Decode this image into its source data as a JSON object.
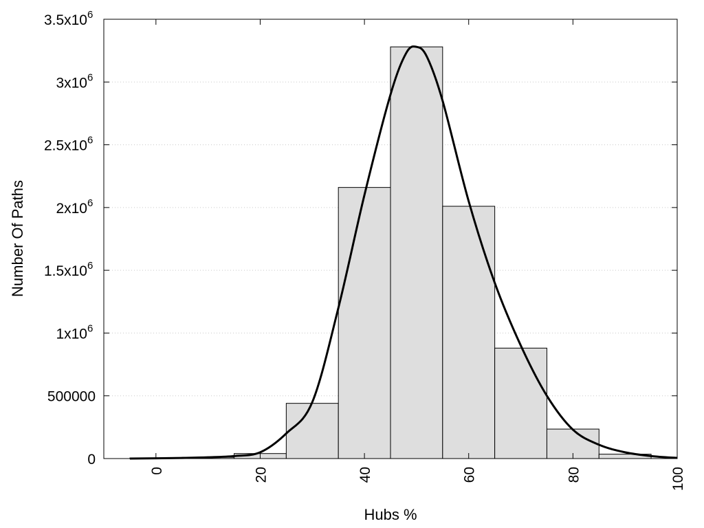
{
  "chart_data": {
    "type": "bar",
    "title": "",
    "xlabel": "Hubs %",
    "ylabel": "Number Of Paths",
    "xlim": [
      -10,
      100
    ],
    "ylim": [
      0,
      3500000
    ],
    "grid": "horizontal-dotted",
    "bin_width": 10,
    "bins": [
      {
        "center": 0,
        "value": 5000
      },
      {
        "center": 10,
        "value": 10000
      },
      {
        "center": 20,
        "value": 40000
      },
      {
        "center": 30,
        "value": 440000
      },
      {
        "center": 40,
        "value": 2160000
      },
      {
        "center": 50,
        "value": 3280000
      },
      {
        "center": 60,
        "value": 2010000
      },
      {
        "center": 70,
        "value": 880000
      },
      {
        "center": 80,
        "value": 235000
      },
      {
        "center": 90,
        "value": 35000
      }
    ],
    "density_curve": {
      "x": [
        -5,
        0,
        5,
        10,
        15,
        20,
        25,
        30,
        35,
        40,
        45,
        48,
        50,
        52,
        55,
        60,
        65,
        70,
        75,
        80,
        85,
        90,
        95,
        100
      ],
      "y": [
        0,
        2000,
        5000,
        10000,
        20000,
        50000,
        200000,
        450000,
        1200000,
        2100000,
        2900000,
        3230000,
        3280000,
        3200000,
        2850000,
        2050000,
        1400000,
        900000,
        500000,
        230000,
        110000,
        50000,
        20000,
        5000
      ]
    },
    "y_ticks": [
      {
        "value": 0,
        "label": "0"
      },
      {
        "value": 500000,
        "label": "500000"
      },
      {
        "value": 1000000,
        "label": "1x10",
        "sup": "6"
      },
      {
        "value": 1500000,
        "label": "1.5x10",
        "sup": "6"
      },
      {
        "value": 2000000,
        "label": "2x10",
        "sup": "6"
      },
      {
        "value": 2500000,
        "label": "2.5x10",
        "sup": "6"
      },
      {
        "value": 3000000,
        "label": "3x10",
        "sup": "6"
      },
      {
        "value": 3500000,
        "label": "3.5x10",
        "sup": "6"
      }
    ],
    "x_ticks": [
      {
        "value": 0,
        "label": "0"
      },
      {
        "value": 20,
        "label": "20"
      },
      {
        "value": 40,
        "label": "40"
      },
      {
        "value": 60,
        "label": "60"
      },
      {
        "value": 80,
        "label": "80"
      },
      {
        "value": 100,
        "label": "100"
      }
    ],
    "colors": {
      "bar_fill": "#dedede",
      "bar_stroke": "#000000",
      "curve": "#000000",
      "grid": "#c8c8c8"
    }
  }
}
